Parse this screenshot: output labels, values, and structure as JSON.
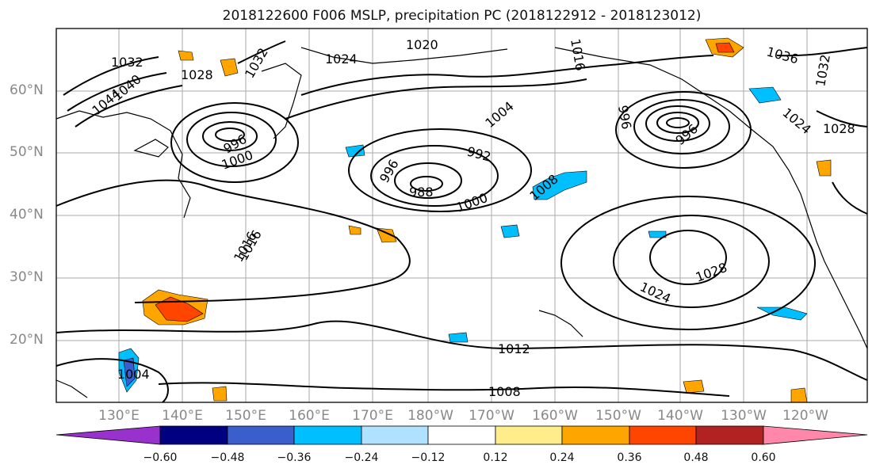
{
  "title": "2018122600 F006 MSLP, precipitation PC (2018122912 - 2018123012)",
  "lat_labels": [
    "60°N",
    "50°N",
    "40°N",
    "30°N",
    "20°N"
  ],
  "lon_labels": [
    "130°E",
    "140°E",
    "150°E",
    "160°E",
    "170°E",
    "180°W",
    "170°W",
    "160°W",
    "150°W",
    "140°W",
    "130°W",
    "120°W"
  ],
  "isobar_labels": [
    "1032",
    "1040",
    "1044",
    "1028",
    "1032",
    "1024",
    "1020",
    "1016",
    "1016",
    "1004",
    "996",
    "996",
    "1000",
    "992",
    "996",
    "988",
    "1000",
    "1008",
    "1016",
    "1012",
    "1008",
    "1004",
    "1024",
    "1028",
    "1036",
    "1032",
    "1028",
    "1024",
    "996"
  ],
  "colorbar": {
    "ticks": [
      "−0.60",
      "−0.48",
      "−0.36",
      "−0.24",
      "−0.12",
      "0.12",
      "0.24",
      "0.36",
      "0.48",
      "0.60"
    ],
    "colors": [
      "#9932CC",
      "#000080",
      "#3A5FCD",
      "#00BFFF",
      "#B0E2FF",
      "#FFFFFF",
      "#FFEC8B",
      "#FFA500",
      "#FF4500",
      "#B22222",
      "#FF88AA"
    ]
  }
}
